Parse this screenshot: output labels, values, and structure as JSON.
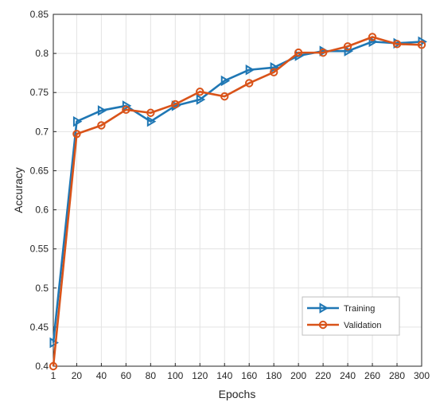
{
  "chart_data": {
    "type": "line",
    "title": "",
    "xlabel": "Epochs",
    "ylabel": "Accuracy",
    "x": [
      1,
      20,
      40,
      60,
      80,
      100,
      120,
      140,
      160,
      180,
      200,
      220,
      240,
      260,
      280,
      300
    ],
    "x_tick_labels": [
      "1",
      "20",
      "40",
      "60",
      "80",
      "100",
      "120",
      "140",
      "160",
      "180",
      "200",
      "220",
      "240",
      "260",
      "280",
      "300"
    ],
    "y_ticks": [
      0.4,
      0.45,
      0.5,
      0.55,
      0.6,
      0.65,
      0.7,
      0.75,
      0.8,
      0.85
    ],
    "y_tick_labels": [
      "0.4",
      "0.45",
      "0.5",
      "0.55",
      "0.6",
      "0.65",
      "0.7",
      "0.75",
      "0.8",
      "0.85"
    ],
    "xlim": [
      1,
      300
    ],
    "ylim": [
      0.4,
      0.85
    ],
    "grid": true,
    "legend_position": "bottom-right",
    "series": [
      {
        "name": "Training",
        "color": "#1f77b4",
        "marker": "triangle-right",
        "values": [
          0.43,
          0.713,
          0.727,
          0.733,
          0.713,
          0.733,
          0.741,
          0.765,
          0.779,
          0.782,
          0.797,
          0.803,
          0.803,
          0.815,
          0.813,
          0.815
        ]
      },
      {
        "name": "Validation",
        "color": "#d95319",
        "marker": "circle",
        "values": [
          0.4,
          0.697,
          0.708,
          0.728,
          0.724,
          0.735,
          0.751,
          0.745,
          0.762,
          0.776,
          0.801,
          0.801,
          0.809,
          0.821,
          0.812,
          0.811
        ]
      }
    ]
  }
}
